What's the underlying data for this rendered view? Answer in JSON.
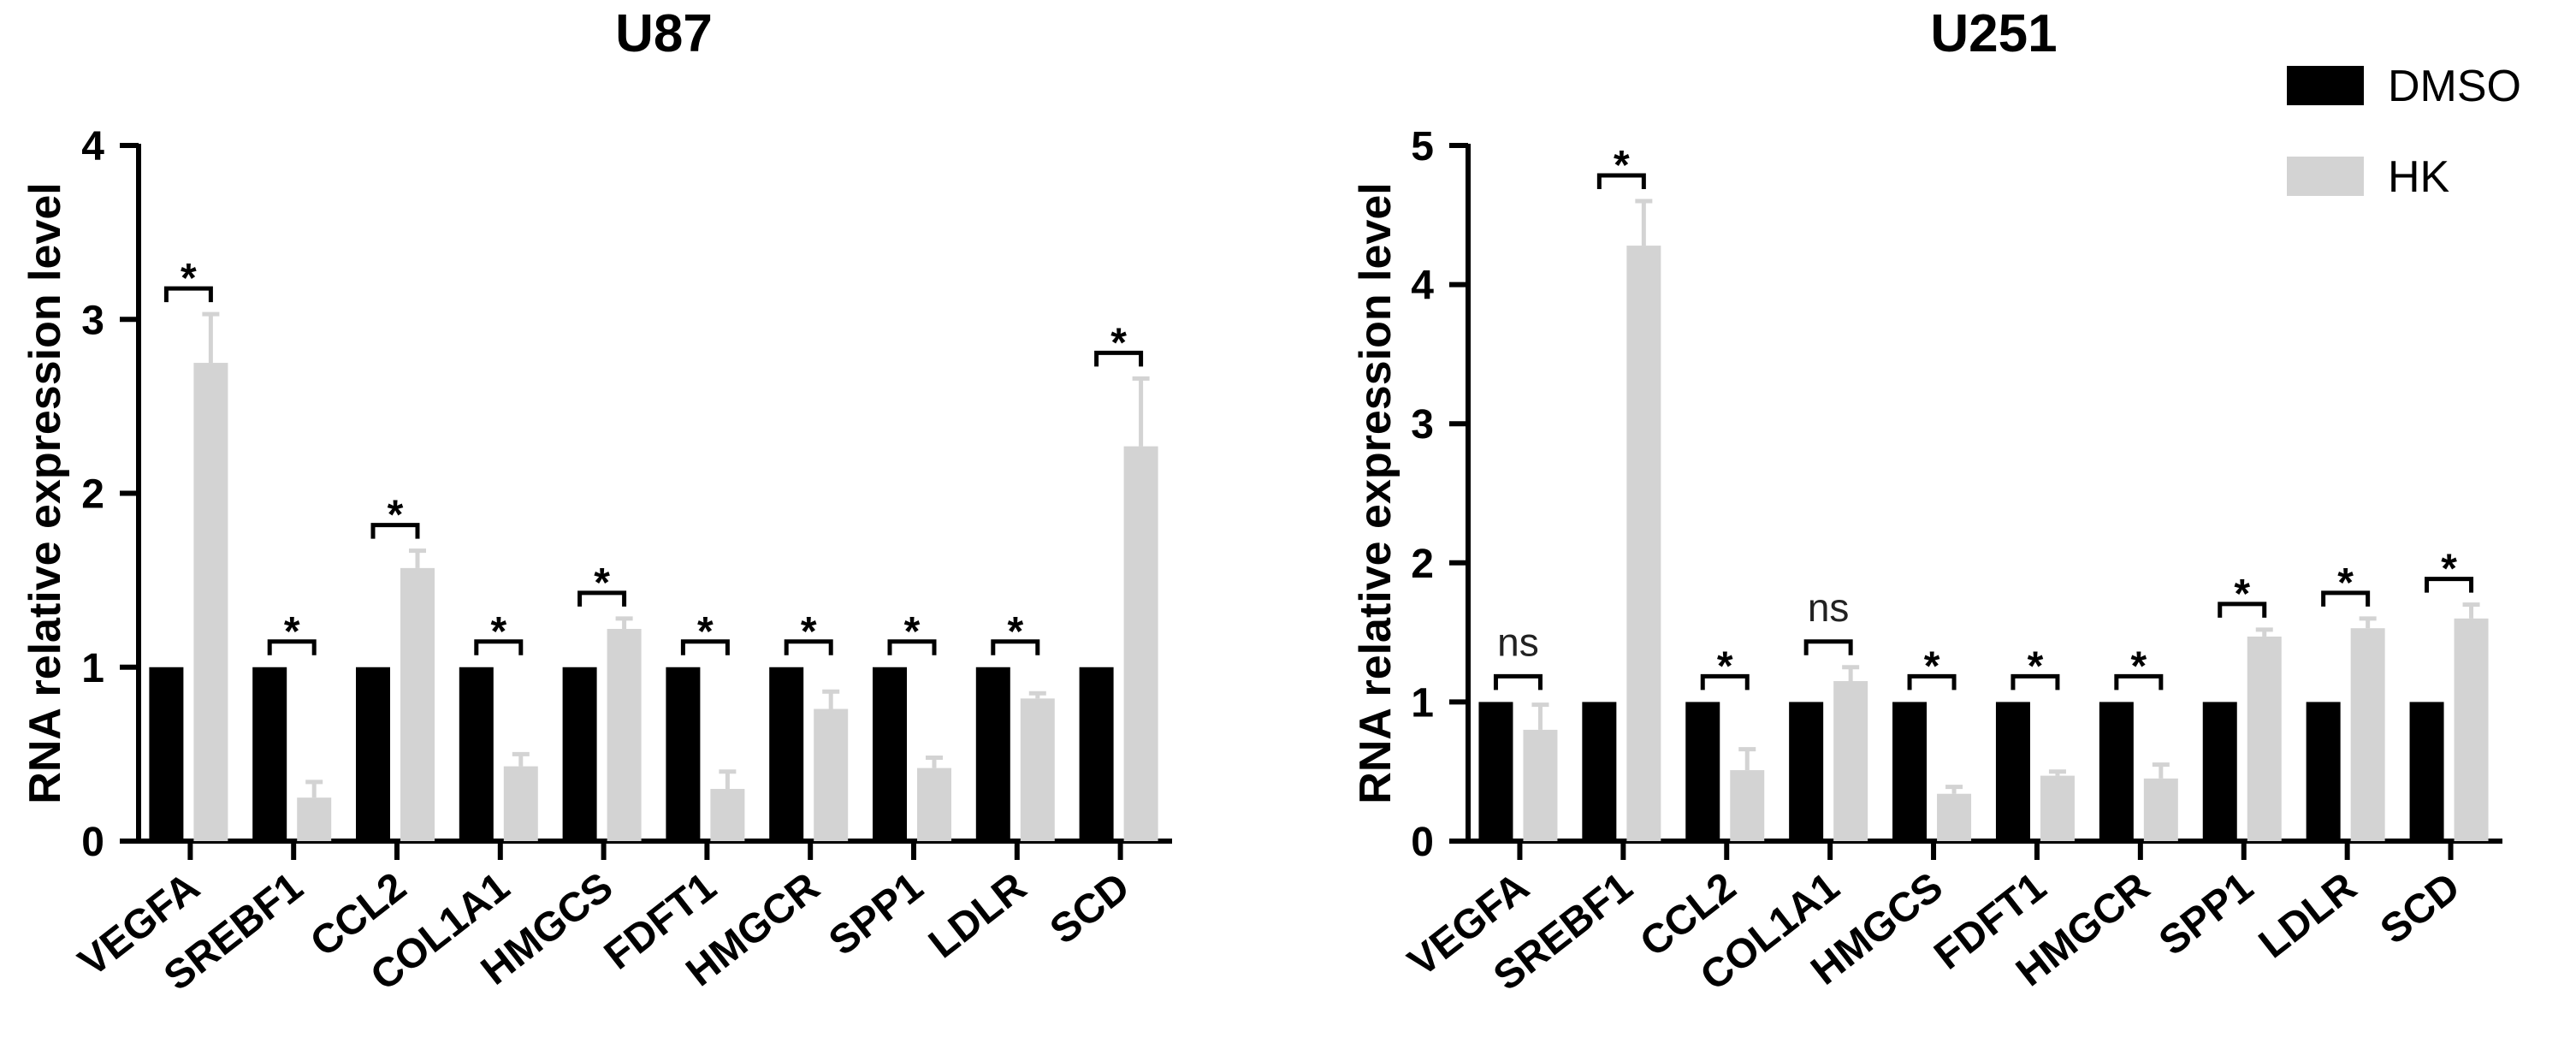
{
  "colors": {
    "dmso": "#000000",
    "hk": "#d3d3d3",
    "axis": "#000000"
  },
  "legend": [
    {
      "name": "DMSO",
      "color": "#000000"
    },
    {
      "name": "HK",
      "color": "#d3d3d3"
    }
  ],
  "chart_data": [
    {
      "type": "bar",
      "title": "U87",
      "ylabel": "RNA relative expression level",
      "xlabel": "",
      "ylim": [
        0,
        4
      ],
      "yticks": [
        0,
        1,
        2,
        3,
        4
      ],
      "categories": [
        "VEGFA",
        "SREBF1",
        "CCL2",
        "COL1A1",
        "HMGCS",
        "FDFT1",
        "HMGCR",
        "SPP1",
        "LDLR",
        "SCD"
      ],
      "series": [
        {
          "name": "DMSO",
          "values": [
            1,
            1,
            1,
            1,
            1,
            1,
            1,
            1,
            1,
            1
          ],
          "errors": [
            0,
            0,
            0,
            0,
            0,
            0,
            0,
            0,
            0,
            0
          ]
        },
        {
          "name": "HK",
          "values": [
            2.75,
            0.25,
            1.57,
            0.43,
            1.22,
            0.3,
            0.76,
            0.42,
            0.82,
            2.27
          ],
          "errors": [
            0.28,
            0.09,
            0.1,
            0.07,
            0.06,
            0.1,
            0.1,
            0.06,
            0.03,
            0.39
          ]
        }
      ],
      "significance": [
        "*",
        "*",
        "*",
        "*",
        "*",
        "*",
        "*",
        "*",
        "*",
        "*"
      ]
    },
    {
      "type": "bar",
      "title": "U251",
      "ylabel": "RNA relative expression level",
      "xlabel": "",
      "ylim": [
        0,
        5
      ],
      "yticks": [
        0,
        1,
        2,
        3,
        4,
        5
      ],
      "categories": [
        "VEGFA",
        "SREBF1",
        "CCL2",
        "COL1A1",
        "HMGCS",
        "FDFT1",
        "HMGCR",
        "SPP1",
        "LDLR",
        "SCD"
      ],
      "series": [
        {
          "name": "DMSO",
          "values": [
            1,
            1,
            1,
            1,
            1,
            1,
            1,
            1,
            1,
            1
          ],
          "errors": [
            0,
            0,
            0,
            0,
            0,
            0,
            0,
            0,
            0,
            0
          ]
        },
        {
          "name": "HK",
          "values": [
            0.8,
            4.28,
            0.51,
            1.15,
            0.34,
            0.47,
            0.45,
            1.47,
            1.53,
            1.6
          ],
          "errors": [
            0.18,
            0.32,
            0.15,
            0.1,
            0.05,
            0.03,
            0.1,
            0.05,
            0.07,
            0.1
          ]
        }
      ],
      "significance": [
        "ns",
        "*",
        "*",
        "ns",
        "*",
        "*",
        "*",
        "*",
        "*",
        "*"
      ]
    }
  ]
}
